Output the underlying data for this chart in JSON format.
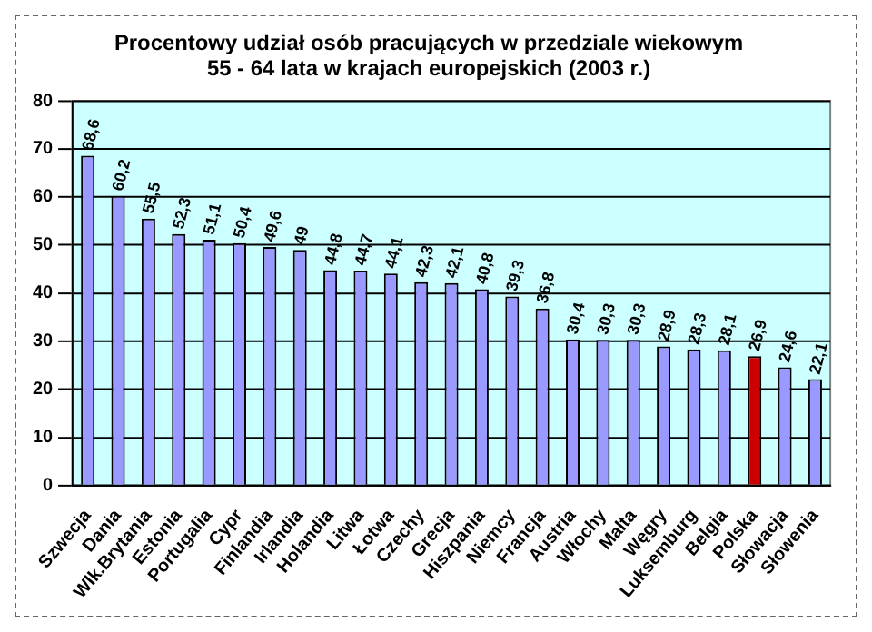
{
  "chart_data": {
    "type": "bar",
    "title": "Procentowy udział osób pracujących w przedziale wiekowym\n55 - 64 lata w krajach europejskich (2003 r.)",
    "categories": [
      "Szwecja",
      "Dania",
      "Wlk.Brytania",
      "Estonia",
      "Portugalia",
      "Cypr",
      "Finlandia",
      "Irlandia",
      "Holandia",
      "Litwa",
      "Łotwa",
      "Czechy",
      "Grecja",
      "Hiszpania",
      "Niemcy",
      "Francja",
      "Austria",
      "Włochy",
      "Malta",
      "Węgry",
      "Luksemburg",
      "Belgia",
      "Polska",
      "Słowacja",
      "Słowenia"
    ],
    "values": [
      68.6,
      60.2,
      55.5,
      52.3,
      51.1,
      50.4,
      49.6,
      49,
      44.8,
      44.7,
      44.1,
      42.3,
      42.1,
      40.8,
      39.3,
      36.8,
      30.4,
      30.3,
      30.3,
      28.9,
      28.3,
      28.1,
      26.9,
      24.6,
      22.1
    ],
    "colors": [
      "#9999ff",
      "#9999ff",
      "#9999ff",
      "#9999ff",
      "#9999ff",
      "#9999ff",
      "#9999ff",
      "#9999ff",
      "#9999ff",
      "#9999ff",
      "#9999ff",
      "#9999ff",
      "#9999ff",
      "#9999ff",
      "#9999ff",
      "#9999ff",
      "#9999ff",
      "#9999ff",
      "#9999ff",
      "#9999ff",
      "#9999ff",
      "#9999ff",
      "#cc0000",
      "#9999ff",
      "#9999ff"
    ],
    "value_labels": [
      "68,6",
      "60,2",
      "55,5",
      "52,3",
      "51,1",
      "50,4",
      "49,6",
      "49",
      "44,8",
      "44,7",
      "44,1",
      "42,3",
      "42,1",
      "40,8",
      "39,3",
      "36,8",
      "30,4",
      "30,3",
      "30,3",
      "28,9",
      "28,3",
      "28,1",
      "26,9",
      "24,6",
      "22,1"
    ],
    "ylim": [
      0,
      80
    ],
    "yticks": [
      0,
      10,
      20,
      30,
      40,
      50,
      60,
      70,
      80
    ],
    "grid": "y",
    "legend": false
  }
}
